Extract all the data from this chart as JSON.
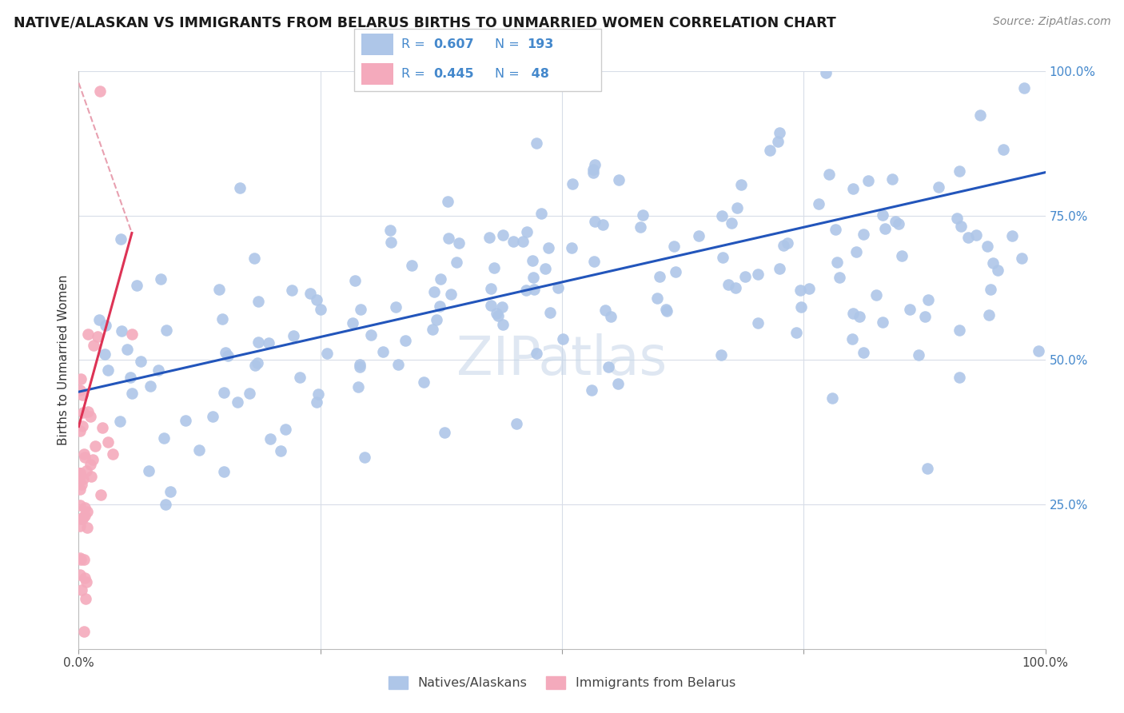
{
  "title": "NATIVE/ALASKAN VS IMMIGRANTS FROM BELARUS BIRTHS TO UNMARRIED WOMEN CORRELATION CHART",
  "source": "Source: ZipAtlas.com",
  "ylabel": "Births to Unmarried Women",
  "blue_R": 0.607,
  "blue_N": 193,
  "pink_R": 0.445,
  "pink_N": 48,
  "blue_color": "#aec6e8",
  "pink_color": "#f4aabc",
  "blue_line_color": "#2255bb",
  "pink_line_color": "#e0406080",
  "pink_solid_color": "#dd3355",
  "pink_dash_color": "#e8a0b0",
  "legend_label_blue": "Natives/Alaskans",
  "legend_label_pink": "Immigrants from Belarus",
  "watermark": "ZIPatlas",
  "grid_color": "#d8dde8",
  "right_label_color": "#4488cc",
  "title_color": "#1a1a1a",
  "source_color": "#888888",
  "ylabel_color": "#333333",
  "blue_trend": [
    0.0,
    1.0,
    0.445,
    0.825
  ],
  "pink_trend_solid": [
    0.0,
    0.055,
    0.385,
    0.72
  ],
  "pink_trend_dash": [
    0.0,
    0.055,
    0.98,
    0.72
  ]
}
